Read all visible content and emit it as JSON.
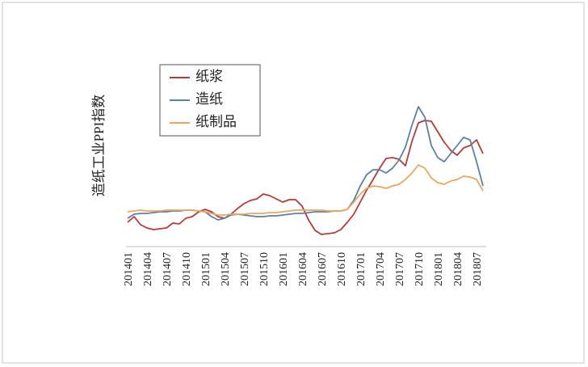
{
  "chart_data": {
    "type": "line",
    "y_label": "造纸工业PPI指数",
    "categories": [
      "201401",
      null,
      null,
      "201404",
      null,
      null,
      "201407",
      null,
      null,
      "201410",
      null,
      null,
      "201501",
      null,
      null,
      "201504",
      null,
      null,
      "201507",
      null,
      null,
      "201510",
      null,
      null,
      "201601",
      null,
      null,
      "201604",
      null,
      null,
      "201607",
      null,
      null,
      "201610",
      null,
      null,
      "201701",
      null,
      null,
      "201704",
      null,
      null,
      "201707",
      null,
      null,
      "201710",
      null,
      null,
      "201801",
      null,
      null,
      "201804",
      null,
      null,
      "201807",
      null
    ],
    "series": [
      {
        "name": "纸浆",
        "color": "#b83a36",
        "values": [
          30,
          37,
          27,
          23,
          21,
          22,
          23,
          29,
          28,
          35,
          37,
          43,
          46,
          43,
          37,
          35,
          40,
          47,
          53,
          57,
          59,
          65,
          63,
          59,
          55,
          58,
          58,
          50,
          33,
          20,
          15,
          16,
          17,
          21,
          30,
          40,
          55,
          70,
          83,
          97,
          109,
          110,
          108,
          100,
          130,
          153,
          156,
          155,
          142,
          129,
          119,
          113,
          122,
          125,
          132,
          115
        ]
      },
      {
        "name": "造纸",
        "color": "#5a7fa8",
        "values": [
          35,
          40,
          41,
          41,
          42,
          43,
          43,
          44,
          44,
          45,
          45,
          44,
          43,
          37,
          33,
          35,
          39,
          40,
          39,
          38,
          37,
          37,
          38,
          38,
          39,
          40,
          41,
          41,
          42,
          43,
          43,
          43,
          44,
          44,
          46,
          57,
          75,
          89,
          95,
          95,
          91,
          97,
          107,
          123,
          150,
          173,
          160,
          125,
          110,
          105,
          115,
          125,
          135,
          132,
          105,
          75
        ]
      },
      {
        "name": "纸制品",
        "color": "#e8a75e",
        "values": [
          43,
          44,
          45,
          44,
          44,
          44,
          45,
          45,
          45,
          45,
          45,
          44,
          43,
          41,
          39,
          39,
          40,
          40,
          40,
          41,
          41,
          41,
          42,
          42,
          43,
          44,
          45,
          45,
          45,
          45,
          45,
          44,
          44,
          44,
          46,
          55,
          65,
          72,
          75,
          74,
          72,
          75,
          77,
          83,
          91,
          101,
          97,
          85,
          79,
          77,
          81,
          83,
          87,
          86,
          83,
          69
        ]
      }
    ],
    "ylim": [
      0,
      200
    ],
    "legend": "upper left"
  }
}
